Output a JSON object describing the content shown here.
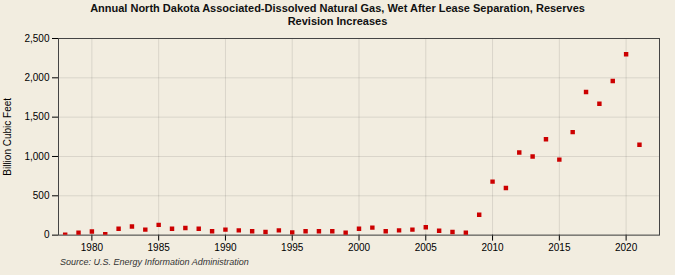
{
  "chart_data": {
    "type": "scatter",
    "title": "Annual North Dakota Associated-Dissolved Natural Gas, Wet After Lease Separation, Reserves\nRevision Increases",
    "ylabel": "Billion Cubic Feet",
    "caption": "Source: U.S. Energy Information Administration",
    "color": "#cc0000",
    "marker": "square",
    "grid": true,
    "x": [
      1978,
      1979,
      1980,
      1981,
      1982,
      1983,
      1984,
      1985,
      1986,
      1987,
      1988,
      1989,
      1990,
      1991,
      1992,
      1993,
      1994,
      1995,
      1996,
      1997,
      1998,
      1999,
      2000,
      2001,
      2002,
      2003,
      2004,
      2005,
      2006,
      2007,
      2008,
      2009,
      2010,
      2011,
      2012,
      2013,
      2014,
      2015,
      2016,
      2017,
      2018,
      2019,
      2020,
      2021
    ],
    "values": [
      5,
      30,
      45,
      10,
      80,
      110,
      70,
      130,
      80,
      90,
      80,
      50,
      70,
      60,
      50,
      40,
      60,
      35,
      50,
      50,
      50,
      30,
      80,
      95,
      50,
      60,
      70,
      100,
      55,
      40,
      30,
      260,
      680,
      600,
      1050,
      1000,
      1220,
      960,
      1310,
      1820,
      1670,
      1960,
      2300,
      1150
    ],
    "xlim": [
      1977.5,
      2022.5
    ],
    "xticks": [
      1980,
      1985,
      1990,
      1995,
      2000,
      2005,
      2010,
      2015,
      2020
    ],
    "ylim": [
      0,
      2500
    ],
    "yticks": [
      0,
      500,
      {
        "value": 1000,
        "label": "1,000"
      },
      {
        "value": 1500,
        "label": "1,500"
      },
      {
        "value": 2000,
        "label": "2,000"
      },
      {
        "value": 2500,
        "label": "2,500"
      }
    ]
  }
}
